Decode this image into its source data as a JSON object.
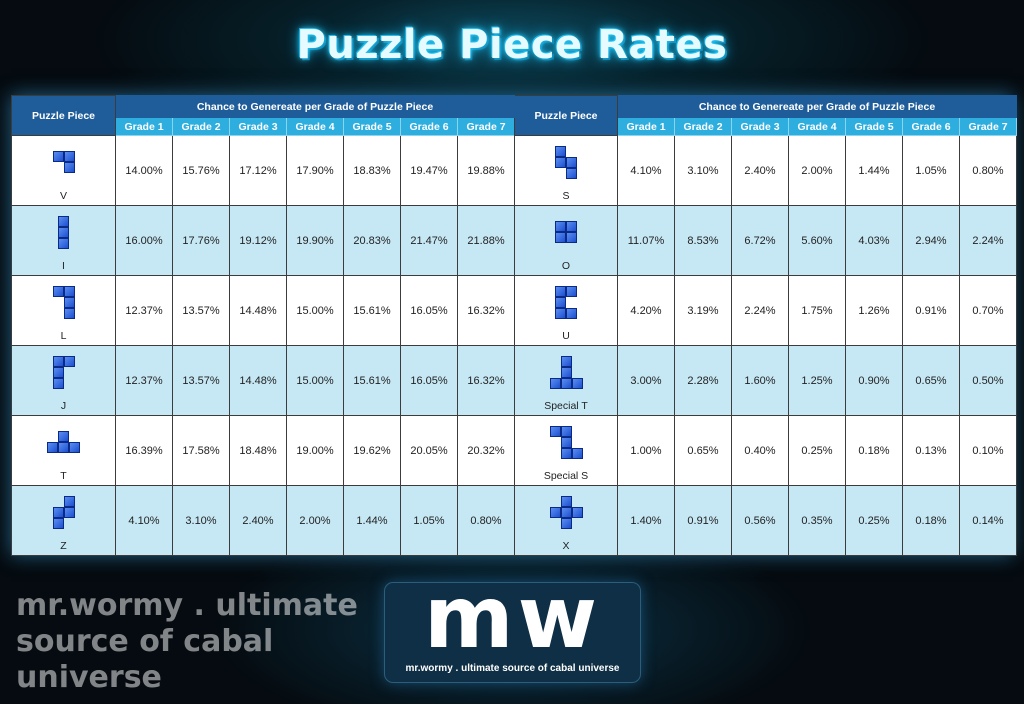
{
  "title": "Puzzle Piece Rates",
  "header": {
    "piece_label": "Puzzle Piece",
    "chance_label": "Chance to Genereate per Grade of Puzzle Piece",
    "grades": [
      "Grade 1",
      "Grade 2",
      "Grade 3",
      "Grade 4",
      "Grade 5",
      "Grade 6",
      "Grade 7"
    ]
  },
  "rows": [
    {
      "left": {
        "name": "V",
        "rates": [
          "14.00%",
          "15.76%",
          "17.12%",
          "17.90%",
          "18.83%",
          "19.47%",
          "19.88%"
        ]
      },
      "right": {
        "name": "S",
        "rates": [
          "4.10%",
          "3.10%",
          "2.40%",
          "2.00%",
          "1.44%",
          "1.05%",
          "0.80%"
        ]
      }
    },
    {
      "left": {
        "name": "I",
        "rates": [
          "16.00%",
          "17.76%",
          "19.12%",
          "19.90%",
          "20.83%",
          "21.47%",
          "21.88%"
        ]
      },
      "right": {
        "name": "O",
        "rates": [
          "11.07%",
          "8.53%",
          "6.72%",
          "5.60%",
          "4.03%",
          "2.94%",
          "2.24%"
        ]
      }
    },
    {
      "left": {
        "name": "L",
        "rates": [
          "12.37%",
          "13.57%",
          "14.48%",
          "15.00%",
          "15.61%",
          "16.05%",
          "16.32%"
        ]
      },
      "right": {
        "name": "U",
        "rates": [
          "4.20%",
          "3.19%",
          "2.24%",
          "1.75%",
          "1.26%",
          "0.91%",
          "0.70%"
        ]
      }
    },
    {
      "left": {
        "name": "J",
        "rates": [
          "12.37%",
          "13.57%",
          "14.48%",
          "15.00%",
          "15.61%",
          "16.05%",
          "16.32%"
        ]
      },
      "right": {
        "name": "Special T",
        "rates": [
          "3.00%",
          "2.28%",
          "1.60%",
          "1.25%",
          "0.90%",
          "0.65%",
          "0.50%"
        ]
      }
    },
    {
      "left": {
        "name": "T",
        "rates": [
          "16.39%",
          "17.58%",
          "18.48%",
          "19.00%",
          "19.62%",
          "20.05%",
          "20.32%"
        ]
      },
      "right": {
        "name": "Special S",
        "rates": [
          "1.00%",
          "0.65%",
          "0.40%",
          "0.25%",
          "0.18%",
          "0.13%",
          "0.10%"
        ]
      }
    },
    {
      "left": {
        "name": "Z",
        "rates": [
          "4.10%",
          "3.10%",
          "2.40%",
          "2.00%",
          "1.44%",
          "1.05%",
          "0.80%"
        ]
      },
      "right": {
        "name": "X",
        "rates": [
          "1.40%",
          "0.91%",
          "0.56%",
          "0.35%",
          "0.25%",
          "0.18%",
          "0.14%"
        ]
      }
    }
  ],
  "watermark": "mr.wormy . ultimate source of cabal universe",
  "logo": {
    "mark": "mw",
    "tagline": "mr.wormy . ultimate source of cabal universe"
  }
}
